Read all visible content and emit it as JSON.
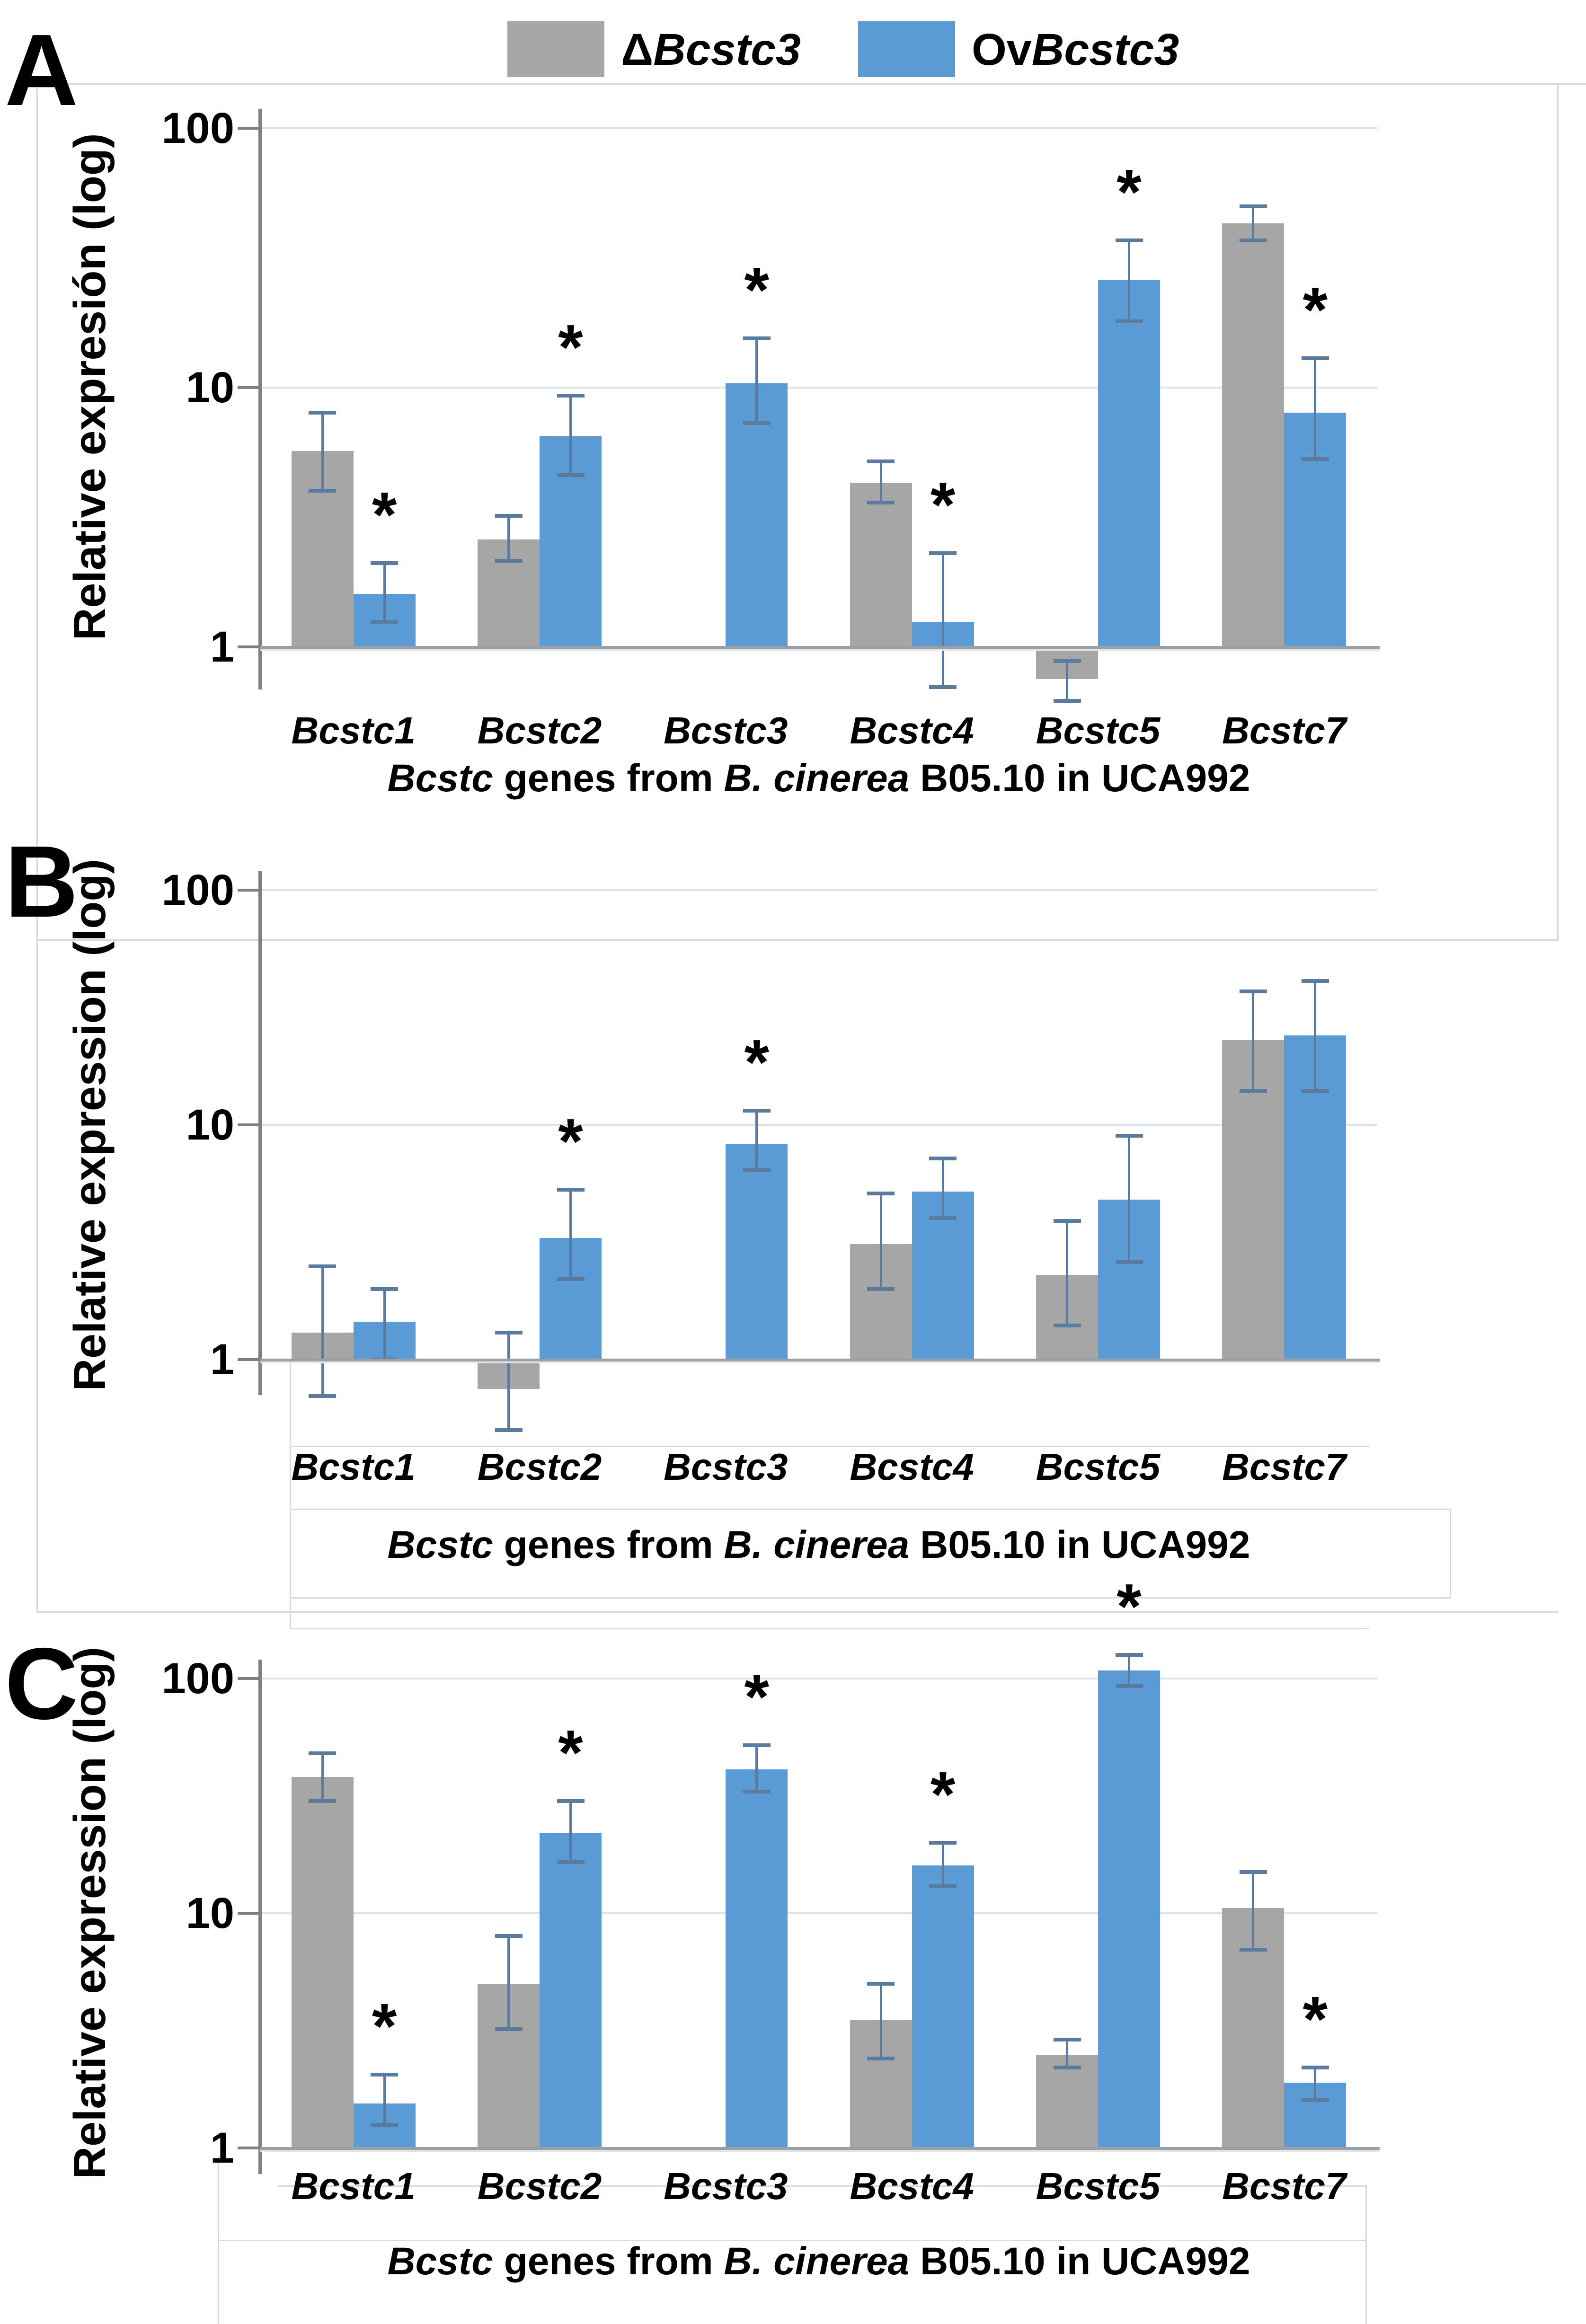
{
  "sig_marker": "*",
  "legend": {
    "items": [
      {
        "color": "#a6a6a6",
        "runs": [
          {
            "text": "Δ",
            "italic": false
          },
          {
            "text": "Bcstc3",
            "italic": true
          }
        ]
      },
      {
        "color": "#5b9bd5",
        "runs": [
          {
            "text": "Ov",
            "italic": false
          },
          {
            "text": "Bcstc3",
            "italic": true
          }
        ]
      }
    ]
  },
  "chart_data": [
    {
      "panel": "A",
      "type": "bar",
      "yscale": "log",
      "ylabel": "Relative expresión (log)",
      "xlabel": "Bcstc genes from B. cinerea B05.10 in UCA992",
      "xlabel_runs": [
        {
          "text": "Bcstc",
          "italic": true
        },
        {
          "text": " genes from ",
          "italic": false
        },
        {
          "text": "B. cinerea",
          "italic": true
        },
        {
          "text": " B05.10 in UCA992",
          "italic": false
        }
      ],
      "ytick_values": [
        100,
        10,
        1
      ],
      "ytick_labels": [
        "100",
        "10",
        "1"
      ],
      "ylim": [
        0.5,
        200
      ],
      "grid": true,
      "legend_position": "top",
      "categories": [
        "Bcstc1",
        "Bcstc2",
        "Bcstc3",
        "Bcstc4",
        "Bcstc5",
        "Bcstc7"
      ],
      "series": [
        {
          "name": "ΔBcstc3",
          "color": "#a6a6a6",
          "values": [
            5.7,
            2.6,
            null,
            4.3,
            0.75,
            43
          ],
          "err_low": [
            4.0,
            2.15,
            null,
            3.6,
            0.62,
            37
          ],
          "err_high": [
            8.0,
            3.2,
            null,
            5.2,
            0.88,
            50
          ],
          "significant": [
            false,
            false,
            false,
            false,
            false,
            false
          ]
        },
        {
          "name": "OvBcstc3",
          "color": "#5b9bd5",
          "values": [
            1.6,
            6.5,
            10.4,
            1.25,
            26,
            8
          ],
          "err_low": [
            1.25,
            4.6,
            7.3,
            0.7,
            18,
            5.3
          ],
          "err_high": [
            2.1,
            9.3,
            15.5,
            2.3,
            37,
            13
          ],
          "significant": [
            true,
            true,
            true,
            true,
            true,
            true
          ]
        }
      ]
    },
    {
      "panel": "B",
      "type": "bar",
      "yscale": "log",
      "ylabel": "Relative expression (log)",
      "xlabel": "Bcstc genes from B. cinerea B05.10 in UCA992",
      "xlabel_runs": [
        {
          "text": "Bcstc",
          "italic": true
        },
        {
          "text": " genes from ",
          "italic": false
        },
        {
          "text": "B. cinerea",
          "italic": true
        },
        {
          "text": " B05.10 in UCA992",
          "italic": false
        }
      ],
      "ytick_values": [
        100,
        10,
        1
      ],
      "ytick_labels": [
        "100",
        "10",
        "1"
      ],
      "ylim": [
        0.3,
        200
      ],
      "grid": true,
      "categories": [
        "Bcstc1",
        "Bcstc2",
        "Bcstc3",
        "Bcstc4",
        "Bcstc5",
        "Bcstc7"
      ],
      "series": [
        {
          "name": "ΔBcstc3",
          "color": "#a6a6a6",
          "values": [
            1.3,
            0.75,
            null,
            3.1,
            2.3,
            23
          ],
          "err_low": [
            0.7,
            0.5,
            null,
            2.0,
            1.4,
            14
          ],
          "err_high": [
            2.5,
            1.3,
            null,
            5.1,
            3.9,
            37
          ],
          "significant": [
            false,
            false,
            false,
            false,
            false,
            false
          ]
        },
        {
          "name": "OvBcstc3",
          "color": "#5b9bd5",
          "values": [
            1.45,
            3.3,
            8.3,
            5.2,
            4.8,
            24
          ],
          "err_low": [
            1.0,
            2.2,
            6.4,
            4.0,
            2.6,
            14
          ],
          "err_high": [
            2.0,
            5.3,
            11.5,
            7.2,
            9.0,
            41
          ],
          "significant": [
            false,
            true,
            true,
            false,
            false,
            false
          ]
        }
      ]
    },
    {
      "panel": "C",
      "type": "bar",
      "yscale": "log",
      "ylabel": "Relative expression (log)",
      "xlabel": "Bcstc genes from B. cinerea B05.10 in UCA992",
      "xlabel_runs": [
        {
          "text": "Bcstc",
          "italic": true
        },
        {
          "text": " genes from ",
          "italic": false
        },
        {
          "text": "B. cinerea",
          "italic": true
        },
        {
          "text": " B05.10 in UCA992",
          "italic": false
        }
      ],
      "ytick_values": [
        100,
        10,
        1
      ],
      "ytick_labels": [
        "100",
        "10",
        "1"
      ],
      "ylim": [
        0.8,
        200
      ],
      "grid": true,
      "categories": [
        "Bcstc1",
        "Bcstc2",
        "Bcstc3",
        "Bcstc4",
        "Bcstc5",
        "Bcstc7"
      ],
      "series": [
        {
          "name": "ΔBcstc3",
          "color": "#a6a6a6",
          "values": [
            38,
            5.0,
            null,
            3.5,
            2.5,
            10.5
          ],
          "err_low": [
            30,
            3.2,
            null,
            2.4,
            2.2,
            7.0
          ],
          "err_high": [
            48,
            8.0,
            null,
            5.0,
            2.9,
            15
          ],
          "significant": [
            false,
            false,
            false,
            false,
            false,
            false
          ]
        },
        {
          "name": "OvBcstc3",
          "color": "#5b9bd5",
          "values": [
            1.55,
            22,
            41,
            16,
            108,
            1.9
          ],
          "err_low": [
            1.25,
            16.5,
            33,
            13,
            93,
            1.6
          ],
          "err_high": [
            2.05,
            30,
            52,
            20,
            126,
            2.2
          ],
          "significant": [
            true,
            true,
            true,
            true,
            true,
            true
          ]
        }
      ]
    }
  ]
}
